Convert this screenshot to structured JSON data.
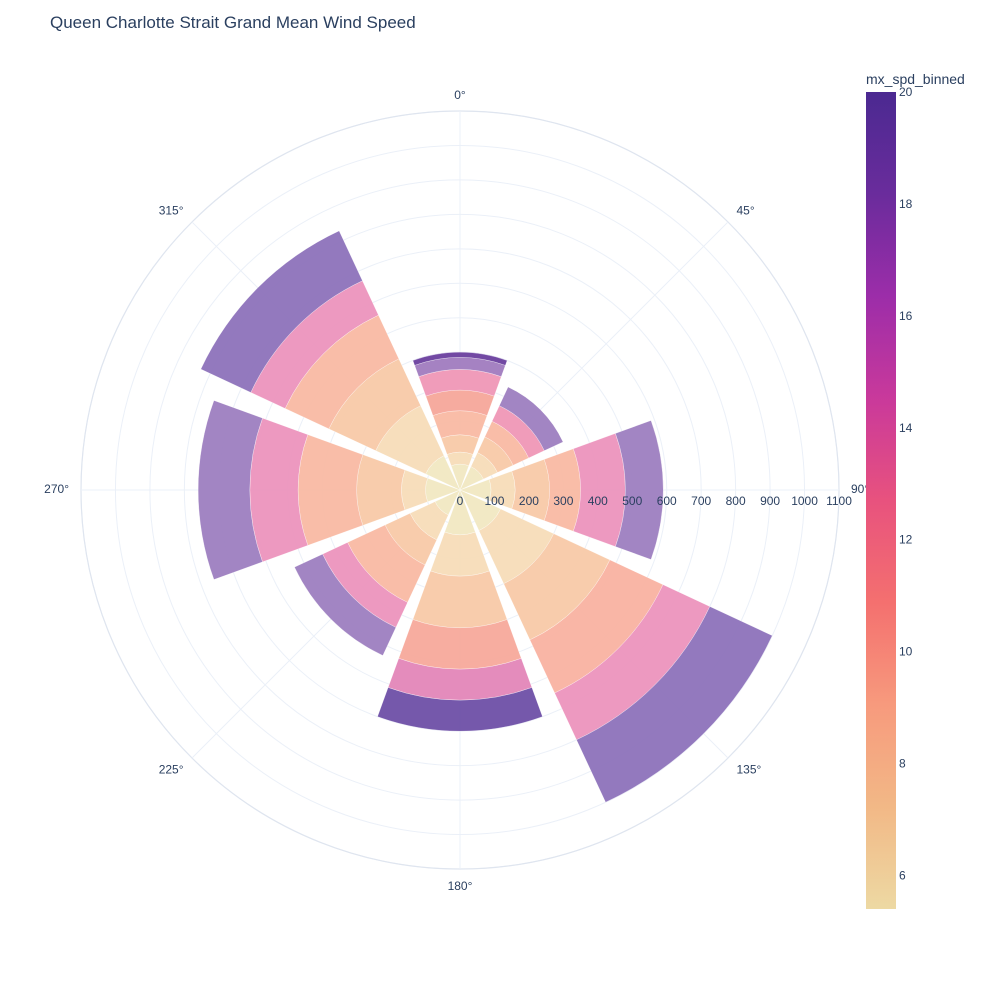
{
  "chart_data": {
    "type": "barpolar",
    "title": "Queen Charlotte Strait Grand Mean Wind Speed",
    "angular_axis": {
      "direction": "clockwise",
      "rotation": 90,
      "tick_labels": [
        "0°",
        "45°",
        "90°",
        "135°",
        "180°",
        "225°",
        "270°",
        "315°"
      ],
      "tick_values": [
        0,
        45,
        90,
        135,
        180,
        225,
        270,
        315
      ]
    },
    "radial_axis": {
      "range": [
        0,
        1100
      ],
      "tick_values": [
        0,
        100,
        200,
        300,
        400,
        500,
        600,
        700,
        800,
        900,
        1000,
        1100
      ],
      "tick_labels": [
        "0",
        "100",
        "200",
        "300",
        "400",
        "500",
        "600",
        "700",
        "800",
        "900",
        "1000",
        "1100"
      ],
      "grid": true
    },
    "bar_width_deg": 40,
    "directions": [
      {
        "theta": 0,
        "segments": [
          {
            "r0": 0,
            "r1": 75,
            "color": "#f1e8c2"
          },
          {
            "r0": 75,
            "r1": 110,
            "color": "#f7dcb8"
          },
          {
            "r0": 110,
            "r1": 160,
            "color": "#f8c9a8"
          },
          {
            "r0": 160,
            "r1": 230,
            "color": "#f9b9a3"
          },
          {
            "r0": 230,
            "r1": 290,
            "color": "#f6a79a"
          },
          {
            "r0": 290,
            "r1": 350,
            "color": "#ef97b6"
          },
          {
            "r0": 350,
            "r1": 385,
            "color": "#a07bbf"
          },
          {
            "r0": 385,
            "r1": 400,
            "color": "#6a3f9e"
          }
        ]
      },
      {
        "theta": 45,
        "segments": [
          {
            "r0": 0,
            "r1": 75,
            "color": "#f1e8c2"
          },
          {
            "r0": 75,
            "r1": 120,
            "color": "#f7dcb8"
          },
          {
            "r0": 120,
            "r1": 170,
            "color": "#f8c9a8"
          },
          {
            "r0": 170,
            "r1": 220,
            "color": "#f9b9a3"
          },
          {
            "r0": 220,
            "r1": 270,
            "color": "#ef97b6"
          },
          {
            "r0": 270,
            "r1": 330,
            "color": "#9d7ec0"
          }
        ]
      },
      {
        "theta": 90,
        "segments": [
          {
            "r0": 0,
            "r1": 90,
            "color": "#f1e8c2"
          },
          {
            "r0": 90,
            "r1": 160,
            "color": "#f7dcb8"
          },
          {
            "r0": 160,
            "r1": 260,
            "color": "#f8c9a8"
          },
          {
            "r0": 260,
            "r1": 350,
            "color": "#f9b9a3"
          },
          {
            "r0": 350,
            "r1": 480,
            "color": "#ec93bd"
          },
          {
            "r0": 480,
            "r1": 590,
            "color": "#9d7ec0"
          }
        ]
      },
      {
        "theta": 135,
        "segments": [
          {
            "r0": 0,
            "r1": 130,
            "color": "#f1e8c2"
          },
          {
            "r0": 130,
            "r1": 300,
            "color": "#f7dcb8"
          },
          {
            "r0": 300,
            "r1": 480,
            "color": "#f8c9a8"
          },
          {
            "r0": 480,
            "r1": 650,
            "color": "#f9b2a1"
          },
          {
            "r0": 650,
            "r1": 800,
            "color": "#ec93bd"
          },
          {
            "r0": 800,
            "r1": 1000,
            "color": "#8d72bb"
          }
        ]
      },
      {
        "theta": 180,
        "segments": [
          {
            "r0": 0,
            "r1": 130,
            "color": "#f1e8c2"
          },
          {
            "r0": 130,
            "r1": 250,
            "color": "#f7dcb8"
          },
          {
            "r0": 250,
            "r1": 400,
            "color": "#f8c9a8"
          },
          {
            "r0": 400,
            "r1": 520,
            "color": "#f7a99b"
          },
          {
            "r0": 520,
            "r1": 610,
            "color": "#e386b8"
          },
          {
            "r0": 610,
            "r1": 700,
            "color": "#6e4fa7"
          }
        ]
      },
      {
        "theta": 225,
        "segments": [
          {
            "r0": 0,
            "r1": 80,
            "color": "#f1e8c2"
          },
          {
            "r0": 80,
            "r1": 160,
            "color": "#f7dcb8"
          },
          {
            "r0": 160,
            "r1": 240,
            "color": "#f8c9a8"
          },
          {
            "r0": 240,
            "r1": 360,
            "color": "#f9b9a3"
          },
          {
            "r0": 360,
            "r1": 440,
            "color": "#ec93bd"
          },
          {
            "r0": 440,
            "r1": 530,
            "color": "#9d7ec0"
          }
        ]
      },
      {
        "theta": 270,
        "segments": [
          {
            "r0": 0,
            "r1": 100,
            "color": "#f1e8c2"
          },
          {
            "r0": 100,
            "r1": 170,
            "color": "#f7dcb8"
          },
          {
            "r0": 170,
            "r1": 300,
            "color": "#f8c9a8"
          },
          {
            "r0": 300,
            "r1": 470,
            "color": "#f9b9a3"
          },
          {
            "r0": 470,
            "r1": 610,
            "color": "#ec93bd"
          },
          {
            "r0": 610,
            "r1": 760,
            "color": "#9d7ec0"
          }
        ]
      },
      {
        "theta": 315,
        "segments": [
          {
            "r0": 0,
            "r1": 110,
            "color": "#f1e8c2"
          },
          {
            "r0": 110,
            "r1": 270,
            "color": "#f7dcb8"
          },
          {
            "r0": 270,
            "r1": 420,
            "color": "#f8c9a8"
          },
          {
            "r0": 420,
            "r1": 560,
            "color": "#f9b9a3"
          },
          {
            "r0": 560,
            "r1": 670,
            "color": "#ec93bd"
          },
          {
            "r0": 670,
            "r1": 830,
            "color": "#8d72bb"
          }
        ]
      }
    ],
    "colorbar": {
      "title": "mx_spd_binned",
      "range": [
        5.4,
        20
      ],
      "tick_values": [
        6,
        8,
        10,
        12,
        14,
        16,
        18,
        20
      ],
      "tick_labels": [
        "6",
        "8",
        "10",
        "12",
        "14",
        "16",
        "18",
        "20"
      ],
      "colorscale": [
        "#edd9a3",
        "#f2b886",
        "#f79a7d",
        "#f4706f",
        "#e8527e",
        "#c9399b",
        "#9c2da9",
        "#6a2c9c",
        "#4b2991"
      ]
    },
    "grid": true,
    "legend": "none"
  }
}
